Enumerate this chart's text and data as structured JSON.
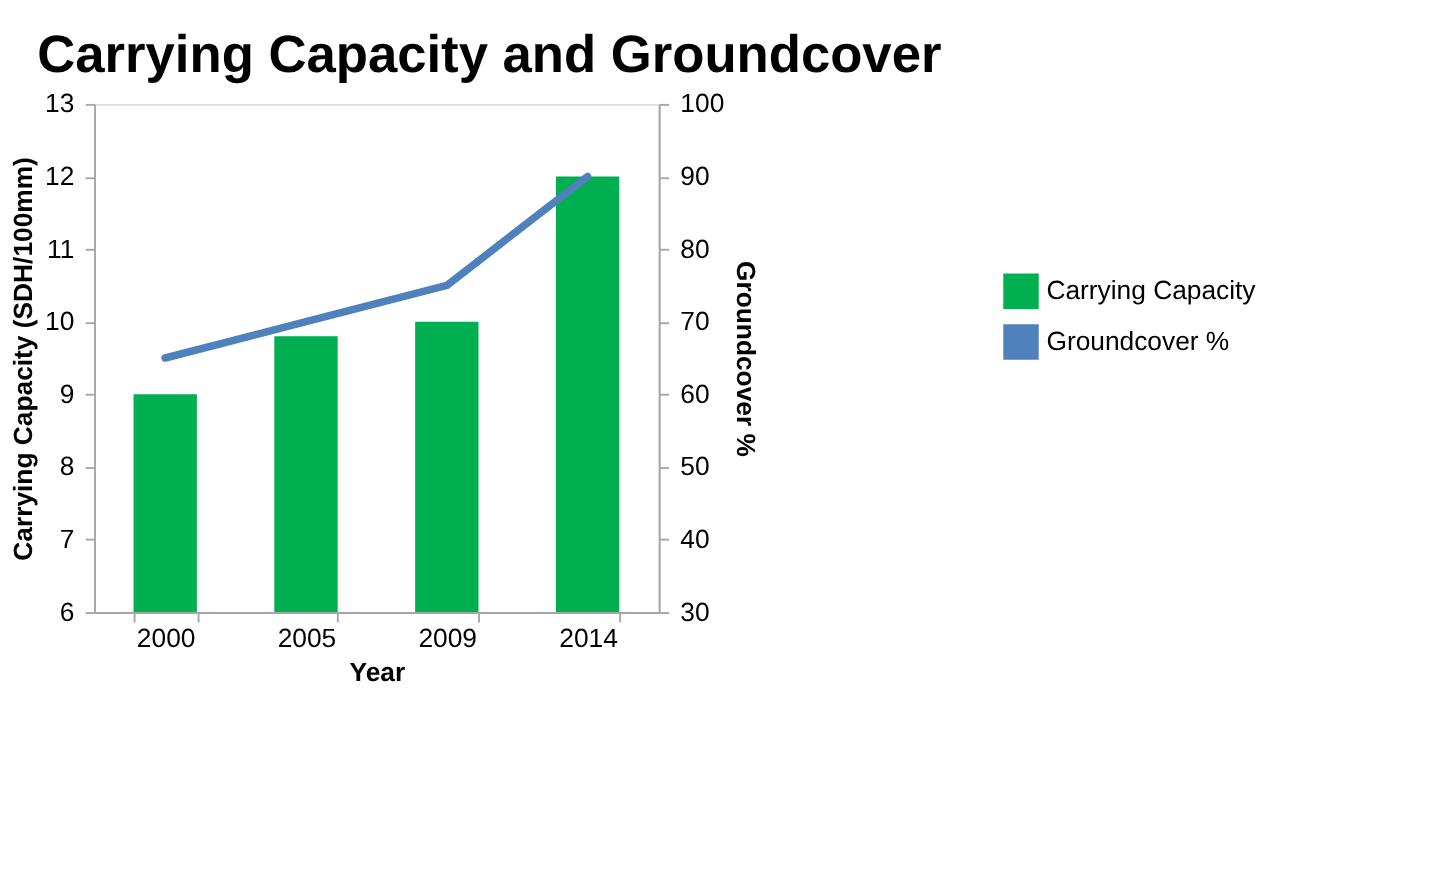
{
  "chart_data": {
    "type": "bar",
    "title": "Carrying Capacity and Groundcover",
    "categories": [
      "2000",
      "2005",
      "2009",
      "2014"
    ],
    "xlabel": "Year",
    "ylabel": "Carrying Capacity (SDH/100mm)",
    "y2label": "Groundcover %",
    "series": [
      {
        "name": "Carrying Capacity",
        "color": "#00b050",
        "values": [
          9,
          9.8,
          10,
          12
        ]
      },
      {
        "name": "Groundcover %",
        "type": "line",
        "axis": "y2",
        "color": "#4f81bd",
        "values": [
          65,
          70,
          75,
          90
        ]
      }
    ],
    "ylim": [
      6,
      13
    ],
    "yticks": [
      6,
      7,
      8,
      9,
      10,
      11,
      12,
      13
    ],
    "y2lim": [
      30,
      100
    ],
    "y2ticks": [
      30,
      40,
      50,
      60,
      70,
      80,
      90,
      100
    ],
    "grid": false,
    "legend": "right"
  }
}
